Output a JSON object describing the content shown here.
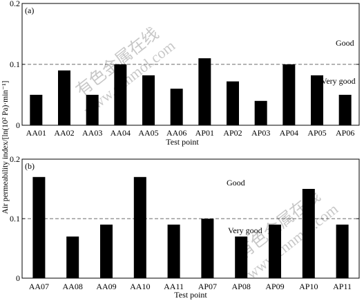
{
  "figure": {
    "ylabel": "Air permeability index/[ln(10² Pa)·min⁻¹]",
    "watermark": "有色金属在线 www.cnnmol.com"
  },
  "chart_data": [
    {
      "type": "bar",
      "panel_label": "(a)",
      "categories": [
        "AA01",
        "AA02",
        "AA03",
        "AA04",
        "AA05",
        "AA06",
        "AP01",
        "AP02",
        "AP03",
        "AP04",
        "AP05",
        "AP06"
      ],
      "values": [
        0.05,
        0.09,
        0.05,
        0.1,
        0.082,
        0.06,
        0.11,
        0.072,
        0.04,
        0.1,
        0.082,
        0.05
      ],
      "xlabel": "Test point",
      "ylim": [
        0,
        0.2
      ],
      "yticks": [
        0,
        0.1,
        0.2
      ],
      "ytick_labels": [
        "0",
        "0.1",
        "0.2"
      ],
      "reference_line": 0.1,
      "annotations": [
        "Good",
        "Very good"
      ],
      "grid": false
    },
    {
      "type": "bar",
      "panel_label": "(b)",
      "categories": [
        "AA07",
        "AA08",
        "AA09",
        "AA10",
        "AA11",
        "AP07",
        "AP08",
        "AP09",
        "AP10",
        "AP11"
      ],
      "values": [
        0.17,
        0.07,
        0.09,
        0.17,
        0.09,
        0.1,
        0.07,
        0.09,
        0.15,
        0.09
      ],
      "xlabel": "Test point",
      "ylim": [
        0,
        0.2
      ],
      "yticks": [
        0,
        0.1,
        0.2
      ],
      "ytick_labels": [
        "0",
        "0.1",
        "0.2"
      ],
      "reference_line": 0.1,
      "annotations": [
        "Good",
        "Very good"
      ],
      "grid": false
    }
  ]
}
